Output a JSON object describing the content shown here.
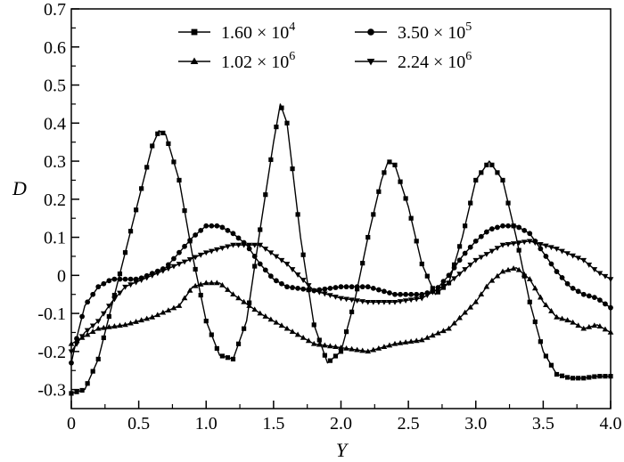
{
  "chart_data": {
    "type": "line",
    "title": "",
    "xlabel": "Y",
    "ylabel": "D",
    "xlim": [
      0,
      4.0
    ],
    "ylim": [
      -0.35,
      0.7
    ],
    "x_ticks": [
      "0",
      "0.5",
      "1.0",
      "1.5",
      "2.0",
      "2.5",
      "3.0",
      "3.5",
      "4.0"
    ],
    "y_ticks": [
      "-0.3",
      "-0.2",
      "-0.1",
      "0",
      "0.1",
      "0.2",
      "0.3",
      "0.4",
      "0.5",
      "0.6",
      "0.7"
    ],
    "grid": false,
    "legend_position": "top",
    "legend_columns": 2,
    "series": [
      {
        "name": "1.60 × 10",
        "exponent": "4",
        "marker": "square",
        "points": [
          [
            0,
            -0.31
          ],
          [
            0.1,
            -0.3
          ],
          [
            0.2,
            -0.22
          ],
          [
            0.3,
            -0.08
          ],
          [
            0.4,
            0.06
          ],
          [
            0.5,
            0.2
          ],
          [
            0.6,
            0.34
          ],
          [
            0.65,
            0.38
          ],
          [
            0.7,
            0.37
          ],
          [
            0.8,
            0.25
          ],
          [
            0.9,
            0.05
          ],
          [
            1.0,
            -0.12
          ],
          [
            1.1,
            -0.21
          ],
          [
            1.2,
            -0.22
          ],
          [
            1.3,
            -0.12
          ],
          [
            1.4,
            0.12
          ],
          [
            1.5,
            0.35
          ],
          [
            1.55,
            0.45
          ],
          [
            1.6,
            0.4
          ],
          [
            1.7,
            0.1
          ],
          [
            1.8,
            -0.13
          ],
          [
            1.9,
            -0.23
          ],
          [
            2.0,
            -0.2
          ],
          [
            2.1,
            -0.07
          ],
          [
            2.2,
            0.1
          ],
          [
            2.3,
            0.25
          ],
          [
            2.35,
            0.3
          ],
          [
            2.4,
            0.29
          ],
          [
            2.5,
            0.18
          ],
          [
            2.6,
            0.03
          ],
          [
            2.7,
            -0.05
          ],
          [
            2.8,
            -0.02
          ],
          [
            2.9,
            0.1
          ],
          [
            3.0,
            0.25
          ],
          [
            3.1,
            0.3
          ],
          [
            3.2,
            0.25
          ],
          [
            3.3,
            0.1
          ],
          [
            3.4,
            -0.07
          ],
          [
            3.5,
            -0.2
          ],
          [
            3.6,
            -0.26
          ],
          [
            3.7,
            -0.27
          ],
          [
            3.8,
            -0.27
          ],
          [
            3.9,
            -0.265
          ],
          [
            4.0,
            -0.265
          ]
        ]
      },
      {
        "name": "3.50 × 10",
        "exponent": "5",
        "marker": "circle",
        "points": [
          [
            0,
            -0.23
          ],
          [
            0.05,
            -0.15
          ],
          [
            0.1,
            -0.08
          ],
          [
            0.2,
            -0.03
          ],
          [
            0.3,
            -0.01
          ],
          [
            0.5,
            -0.01
          ],
          [
            0.7,
            0.02
          ],
          [
            0.9,
            0.1
          ],
          [
            1.0,
            0.13
          ],
          [
            1.1,
            0.13
          ],
          [
            1.2,
            0.11
          ],
          [
            1.3,
            0.08
          ],
          [
            1.4,
            0.03
          ],
          [
            1.5,
            -0.01
          ],
          [
            1.6,
            -0.03
          ],
          [
            1.8,
            -0.04
          ],
          [
            2.0,
            -0.03
          ],
          [
            2.2,
            -0.03
          ],
          [
            2.4,
            -0.05
          ],
          [
            2.6,
            -0.05
          ],
          [
            2.7,
            -0.04
          ],
          [
            2.8,
            0.0
          ],
          [
            2.9,
            0.05
          ],
          [
            3.0,
            0.09
          ],
          [
            3.1,
            0.12
          ],
          [
            3.2,
            0.13
          ],
          [
            3.3,
            0.13
          ],
          [
            3.4,
            0.11
          ],
          [
            3.5,
            0.06
          ],
          [
            3.6,
            0.01
          ],
          [
            3.7,
            -0.03
          ],
          [
            3.8,
            -0.05
          ],
          [
            3.9,
            -0.06
          ],
          [
            4.0,
            -0.085
          ]
        ]
      },
      {
        "name": "1.02 × 10",
        "exponent": "6",
        "marker": "triangle-up",
        "points": [
          [
            0,
            -0.18
          ],
          [
            0.2,
            -0.14
          ],
          [
            0.4,
            -0.13
          ],
          [
            0.6,
            -0.11
          ],
          [
            0.8,
            -0.08
          ],
          [
            0.9,
            -0.03
          ],
          [
            1.0,
            -0.02
          ],
          [
            1.1,
            -0.02
          ],
          [
            1.2,
            -0.05
          ],
          [
            1.4,
            -0.1
          ],
          [
            1.6,
            -0.14
          ],
          [
            1.8,
            -0.18
          ],
          [
            2.0,
            -0.19
          ],
          [
            2.2,
            -0.2
          ],
          [
            2.4,
            -0.18
          ],
          [
            2.6,
            -0.17
          ],
          [
            2.8,
            -0.14
          ],
          [
            3.0,
            -0.07
          ],
          [
            3.1,
            -0.02
          ],
          [
            3.2,
            0.01
          ],
          [
            3.3,
            0.02
          ],
          [
            3.4,
            -0.01
          ],
          [
            3.5,
            -0.07
          ],
          [
            3.6,
            -0.11
          ],
          [
            3.7,
            -0.12
          ],
          [
            3.8,
            -0.14
          ],
          [
            3.9,
            -0.13
          ],
          [
            4.0,
            -0.15
          ]
        ]
      },
      {
        "name": "2.24 × 10",
        "exponent": "6",
        "marker": "triangle-down",
        "points": [
          [
            0,
            -0.2
          ],
          [
            0.1,
            -0.15
          ],
          [
            0.2,
            -0.12
          ],
          [
            0.3,
            -0.07
          ],
          [
            0.4,
            -0.03
          ],
          [
            0.6,
            0.0
          ],
          [
            0.8,
            0.03
          ],
          [
            1.0,
            0.06
          ],
          [
            1.2,
            0.08
          ],
          [
            1.4,
            0.08
          ],
          [
            1.6,
            0.03
          ],
          [
            1.8,
            -0.04
          ],
          [
            2.0,
            -0.06
          ],
          [
            2.2,
            -0.07
          ],
          [
            2.4,
            -0.07
          ],
          [
            2.6,
            -0.06
          ],
          [
            2.8,
            -0.02
          ],
          [
            3.0,
            0.04
          ],
          [
            3.2,
            0.08
          ],
          [
            3.4,
            0.09
          ],
          [
            3.6,
            0.07
          ],
          [
            3.8,
            0.04
          ],
          [
            3.9,
            0.01
          ],
          [
            4.0,
            -0.01
          ]
        ]
      }
    ]
  }
}
